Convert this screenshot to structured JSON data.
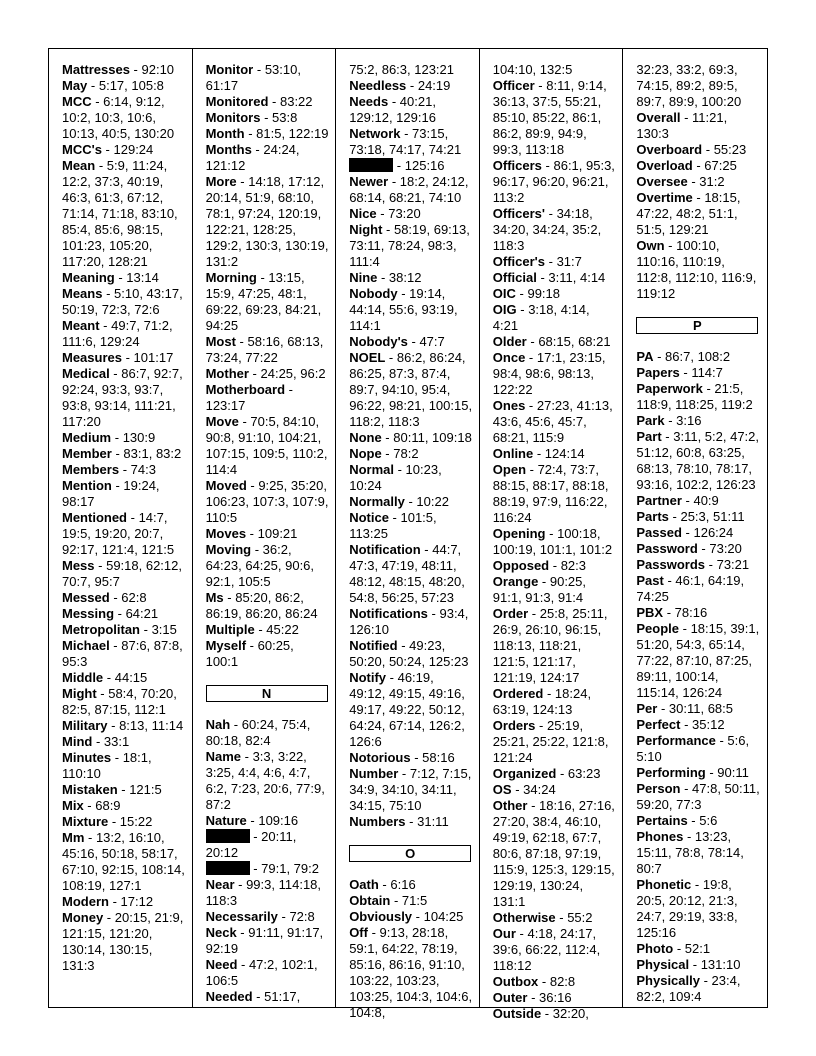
{
  "columns": [
    {
      "items": [
        {
          "term": "Mattresses",
          "refs": "92:10"
        },
        {
          "term": "May",
          "refs": "5:17, 105:8"
        },
        {
          "term": "MCC",
          "refs": "6:14, 9:12, 10:2, 10:3, 10:6, 10:13, 40:5, 130:20"
        },
        {
          "term": "MCC's",
          "refs": "129:24"
        },
        {
          "term": "Mean",
          "refs": "5:9, 11:24, 12:2, 37:3, 40:19, 46:3, 61:3, 67:12, 71:14, 71:18, 83:10, 85:4, 85:6, 98:15, 101:23, 105:20, 117:20, 128:21"
        },
        {
          "term": "Meaning",
          "refs": "13:14"
        },
        {
          "term": "Means",
          "refs": "5:10, 43:17, 50:19, 72:3, 72:6"
        },
        {
          "term": "Meant",
          "refs": "49:7, 71:2, 111:6, 129:24"
        },
        {
          "term": "Measures",
          "refs": "101:17"
        },
        {
          "term": "Medical",
          "refs": "86:7, 92:7, 92:24, 93:3, 93:7, 93:8, 93:14, 111:21, 117:20"
        },
        {
          "term": "Medium",
          "refs": "130:9"
        },
        {
          "term": "Member",
          "refs": "83:1, 83:2"
        },
        {
          "term": "Members",
          "refs": "74:3"
        },
        {
          "term": "Mention",
          "refs": "19:24, 98:17"
        },
        {
          "term": "Mentioned",
          "refs": "14:7, 19:5, 19:20, 20:7, 92:17, 121:4, 121:5"
        },
        {
          "term": "Mess",
          "refs": "59:18, 62:12, 70:7, 95:7"
        },
        {
          "term": "Messed",
          "refs": "62:8"
        },
        {
          "term": "Messing",
          "refs": "64:21"
        },
        {
          "term": "Metropolitan",
          "refs": "3:15"
        },
        {
          "term": "Michael",
          "refs": "87:6, 87:8, 95:3"
        },
        {
          "term": "Middle",
          "refs": "44:15"
        },
        {
          "term": "Might",
          "refs": "58:4, 70:20, 82:5, 87:15, 112:1"
        },
        {
          "term": "Military",
          "refs": "8:13, 11:14"
        },
        {
          "term": "Mind",
          "refs": "33:1"
        },
        {
          "term": "Minutes",
          "refs": "18:1, 110:10"
        },
        {
          "term": "Mistaken",
          "refs": "121:5"
        },
        {
          "term": "Mix",
          "refs": "68:9"
        },
        {
          "term": "Mixture",
          "refs": "15:22"
        },
        {
          "term": "Mm",
          "refs": "13:2, 16:10, 45:16, 50:18, 58:17, 67:10, 92:15, 108:14, 108:19, 127:1"
        },
        {
          "term": "Modern",
          "refs": "17:12"
        },
        {
          "term": "Money",
          "refs": "20:15, 21:9, 121:15, 121:20, 130:14, 130:15, 131:3"
        }
      ]
    },
    {
      "items": [
        {
          "term": "Monitor",
          "refs": "53:10, 61:17"
        },
        {
          "term": "Monitored",
          "refs": "83:22"
        },
        {
          "term": "Monitors",
          "refs": "53:8"
        },
        {
          "term": "Month",
          "refs": "81:5, 122:19"
        },
        {
          "term": "Months",
          "refs": "24:24, 121:12"
        },
        {
          "term": "More",
          "refs": "14:18, 17:12, 20:14, 51:9, 68:10, 78:1, 97:24, 120:19, 122:21, 128:25, 129:2, 130:3, 130:19, 131:2"
        },
        {
          "term": "Morning",
          "refs": "13:15, 15:9, 47:25, 48:1, 69:22, 69:23, 84:21, 94:25"
        },
        {
          "term": "Most",
          "refs": "58:16, 68:13, 73:24, 77:22"
        },
        {
          "term": "Mother",
          "refs": "24:25, 96:2"
        },
        {
          "term": "Motherboard",
          "refs": "123:17"
        },
        {
          "term": "Move",
          "refs": "70:5, 84:10, 90:8, 91:10, 104:21, 107:15, 109:5, 110:2, 114:4"
        },
        {
          "term": "Moved",
          "refs": "9:25, 35:20, 106:23, 107:3, 107:9, 110:5"
        },
        {
          "term": "Moves",
          "refs": "109:21"
        },
        {
          "term": "Moving",
          "refs": "36:2, 64:23, 64:25, 90:6, 92:1, 105:5"
        },
        {
          "term": "Ms",
          "refs": "85:20, 86:2, 86:19, 86:20, 86:24"
        },
        {
          "term": "Multiple",
          "refs": "45:22"
        },
        {
          "term": "Myself",
          "refs": "60:25, 100:1"
        },
        {
          "header": "N"
        },
        {
          "term": "Nah",
          "refs": "60:24, 75:4, 80:18, 82:4"
        },
        {
          "term": "Name",
          "refs": "3:3, 3:22, 3:25, 4:4, 4:6, 4:7, 6:2, 7:23, 20:6, 77:9, 87:2"
        },
        {
          "term": "Nature",
          "refs": "109:16"
        },
        {
          "redacted": true,
          "refs": "20:11, 20:12"
        },
        {
          "redacted": true,
          "refs": "79:1, 79:2"
        },
        {
          "term": "Near",
          "refs": "99:3, 114:18, 118:3"
        },
        {
          "term": "Necessarily",
          "refs": "72:8"
        },
        {
          "term": "Neck",
          "refs": "91:11, 91:17, 92:19"
        },
        {
          "term": "Need",
          "refs": "47:2, 102:1, 106:5"
        },
        {
          "term": "Needed",
          "refs": "51:17,"
        }
      ]
    },
    {
      "items": [
        {
          "cont": true,
          "refs": "75:2, 86:3, 123:21"
        },
        {
          "term": "Needless",
          "refs": "24:19"
        },
        {
          "term": "Needs",
          "refs": "40:21, 129:12, 129:16"
        },
        {
          "term": "Network",
          "refs": "73:15, 73:18, 74:17, 74:21"
        },
        {
          "redacted": true,
          "refs": "125:16"
        },
        {
          "term": "Newer",
          "refs": "18:2, 24:12, 68:14, 68:21, 74:10"
        },
        {
          "term": "Nice",
          "refs": "73:20"
        },
        {
          "term": "Night",
          "refs": "58:19, 69:13, 73:11, 78:24, 98:3, 111:4"
        },
        {
          "term": "Nine",
          "refs": "38:12"
        },
        {
          "term": "Nobody",
          "refs": "19:14, 44:14, 55:6, 93:19, 114:1"
        },
        {
          "term": "Nobody's",
          "refs": "47:7"
        },
        {
          "term": "NOEL",
          "refs": "86:2, 86:24, 86:25, 87:3, 87:4, 89:7, 94:10, 95:4, 96:22, 98:21, 100:15, 118:2, 118:3"
        },
        {
          "term": "None",
          "refs": "80:11, 109:18"
        },
        {
          "term": "Nope",
          "refs": "78:2"
        },
        {
          "term": "Normal",
          "refs": "10:23, 10:24"
        },
        {
          "term": "Normally",
          "refs": "10:22"
        },
        {
          "term": "Notice",
          "refs": "101:5, 113:25"
        },
        {
          "term": "Notification",
          "refs": "44:7, 47:3, 47:19, 48:11, 48:12, 48:15, 48:20, 54:8, 56:25, 57:23"
        },
        {
          "term": "Notifications",
          "refs": "93:4, 126:10"
        },
        {
          "term": "Notified",
          "refs": "49:23, 50:20, 50:24, 125:23"
        },
        {
          "term": "Notify",
          "refs": "46:19, 49:12, 49:15, 49:16, 49:17, 49:22, 50:12, 64:24, 67:14, 126:2, 126:6"
        },
        {
          "term": "Notorious",
          "refs": "58:16"
        },
        {
          "term": "Number",
          "refs": "7:12, 7:15, 34:9, 34:10, 34:11, 34:15, 75:10"
        },
        {
          "term": "Numbers",
          "refs": "31:11"
        },
        {
          "header": "O"
        },
        {
          "term": "Oath",
          "refs": "6:16"
        },
        {
          "term": "Obtain",
          "refs": "71:5"
        },
        {
          "term": "Obviously",
          "refs": "104:25"
        },
        {
          "term": "Off",
          "refs": "9:13, 28:18, 59:1, 64:22, 78:19, 85:16, 86:16, 91:10, 103:22, 103:23, 103:25, 104:3, 104:6, 104:8,"
        }
      ]
    },
    {
      "items": [
        {
          "cont": true,
          "refs": "104:10, 132:5"
        },
        {
          "term": "Officer",
          "refs": "8:11, 9:14, 36:13, 37:5, 55:21, 85:10, 85:22, 86:1, 86:2, 89:9, 94:9, 99:3, 113:18"
        },
        {
          "term": "Officers",
          "refs": "86:1, 95:3, 96:17, 96:20, 96:21, 113:2"
        },
        {
          "term": "Officers'",
          "refs": "34:18, 34:20, 34:24, 35:2, 118:3"
        },
        {
          "term": "Officer's",
          "refs": "31:7"
        },
        {
          "term": "Official",
          "refs": "3:11, 4:14"
        },
        {
          "term": "OIC",
          "refs": "99:18"
        },
        {
          "term": "OIG",
          "refs": "3:18, 4:14, 4:21"
        },
        {
          "term": "Older",
          "refs": "68:15, 68:21"
        },
        {
          "term": "Once",
          "refs": "17:1, 23:15, 98:4, 98:6, 98:13, 122:22"
        },
        {
          "term": "Ones",
          "refs": "27:23, 41:13, 43:6, 45:6, 45:7, 68:21, 115:9"
        },
        {
          "term": "Online",
          "refs": "124:14"
        },
        {
          "term": "Open",
          "refs": "72:4, 73:7, 88:15, 88:17, 88:18, 88:19, 97:9, 116:22, 116:24"
        },
        {
          "term": "Opening",
          "refs": "100:18, 100:19, 101:1, 101:2"
        },
        {
          "term": "Opposed",
          "refs": "82:3"
        },
        {
          "term": "Orange",
          "refs": "90:25, 91:1, 91:3, 91:4"
        },
        {
          "term": "Order",
          "refs": "25:8, 25:11, 26:9, 26:10, 96:15, 118:13, 118:21, 121:5, 121:17, 121:19, 124:17"
        },
        {
          "term": "Ordered",
          "refs": "18:24, 63:19, 124:13"
        },
        {
          "term": "Orders",
          "refs": "25:19, 25:21, 25:22, 121:8, 121:24"
        },
        {
          "term": "Organized",
          "refs": "63:23"
        },
        {
          "term": "OS",
          "refs": "34:24"
        },
        {
          "term": "Other",
          "refs": "18:16, 27:16, 27:20, 38:4, 46:10, 49:19, 62:18, 67:7, 80:6, 87:18, 97:19, 115:9, 125:3, 129:15, 129:19, 130:24, 131:1"
        },
        {
          "term": "Otherwise",
          "refs": "55:2"
        },
        {
          "term": "Our",
          "refs": "4:18, 24:17, 39:6, 66:22, 112:4, 118:12"
        },
        {
          "term": "Outbox",
          "refs": "82:8"
        },
        {
          "term": "Outer",
          "refs": "36:16"
        },
        {
          "term": "Outside",
          "refs": "32:20,"
        }
      ]
    },
    {
      "items": [
        {
          "cont": true,
          "refs": "32:23, 33:2, 69:3, 74:15, 89:2, 89:5, 89:7, 89:9, 100:20"
        },
        {
          "term": "Overall",
          "refs": "11:21, 130:3"
        },
        {
          "term": "Overboard",
          "refs": "55:23"
        },
        {
          "term": "Overload",
          "refs": "67:25"
        },
        {
          "term": "Oversee",
          "refs": "31:2"
        },
        {
          "term": "Overtime",
          "refs": "18:15, 47:22, 48:2, 51:1, 51:5, 129:21"
        },
        {
          "term": "Own",
          "refs": "100:10, 110:16, 110:19, 112:8, 112:10, 116:9, 119:12"
        },
        {
          "header": "P"
        },
        {
          "term": "PA",
          "refs": "86:7, 108:2"
        },
        {
          "term": "Papers",
          "refs": "114:7"
        },
        {
          "term": "Paperwork",
          "refs": "21:5, 118:9, 118:25, 119:2"
        },
        {
          "term": "Park",
          "refs": "3:16"
        },
        {
          "term": "Part",
          "refs": "3:11, 5:2, 47:2, 51:12, 60:8, 63:25, 68:13, 78:10, 78:17, 93:16, 102:2, 126:23"
        },
        {
          "term": "Partner",
          "refs": "40:9"
        },
        {
          "term": "Parts",
          "refs": "25:3, 51:11"
        },
        {
          "term": "Passed",
          "refs": "126:24"
        },
        {
          "term": "Password",
          "refs": "73:20"
        },
        {
          "term": "Passwords",
          "refs": "73:21"
        },
        {
          "term": "Past",
          "refs": "46:1, 64:19, 74:25"
        },
        {
          "term": "PBX",
          "refs": "78:16"
        },
        {
          "term": "People",
          "refs": "18:15, 39:1, 51:20, 54:3, 65:14, 77:22, 87:10, 87:25, 89:11, 100:14, 115:14, 126:24"
        },
        {
          "term": "Per",
          "refs": "30:11, 68:5"
        },
        {
          "term": "Perfect",
          "refs": "35:12"
        },
        {
          "term": "Performance",
          "refs": "5:6, 5:10"
        },
        {
          "term": "Performing",
          "refs": "90:11"
        },
        {
          "term": "Person",
          "refs": "47:8, 50:11, 59:20, 77:3"
        },
        {
          "term": "Pertains",
          "refs": "5:6"
        },
        {
          "term": "Phones",
          "refs": "13:23, 15:11, 78:8, 78:14, 80:7"
        },
        {
          "term": "Phonetic",
          "refs": "19:8, 20:5, 20:12, 21:3, 24:7, 29:19, 33:8, 125:16"
        },
        {
          "term": "Photo",
          "refs": "52:1"
        },
        {
          "term": "Physical",
          "refs": "131:10"
        },
        {
          "term": "Physically",
          "refs": "23:4, 82:2, 109:4"
        }
      ]
    }
  ]
}
